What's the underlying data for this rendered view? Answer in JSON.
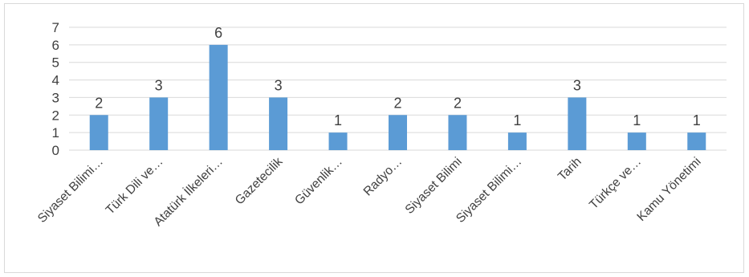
{
  "chart_data": {
    "type": "bar",
    "categories": [
      "Siyaset Bilimi…",
      "Türk Dili ve…",
      "Atatürk İlkeleri…",
      "Gazetecilik",
      "Güvenlik…",
      "Radyo…",
      "Siyaset Bilimi",
      "Siyaset Bilimi…",
      "Tarih",
      "Türkçe ve…",
      "Kamu Yönetimi"
    ],
    "values": [
      2,
      3,
      6,
      3,
      1,
      2,
      2,
      1,
      3,
      1,
      1
    ],
    "y_ticks": [
      "0",
      "1",
      "2",
      "3",
      "4",
      "5",
      "6",
      "7"
    ],
    "ylim": [
      0,
      7
    ],
    "grid": true,
    "legend": "none",
    "title": "",
    "xlabel": "",
    "ylabel": "",
    "colors": {
      "bar": "#5b9bd5",
      "grid": "#d9d9d9",
      "text": "#404040"
    }
  }
}
